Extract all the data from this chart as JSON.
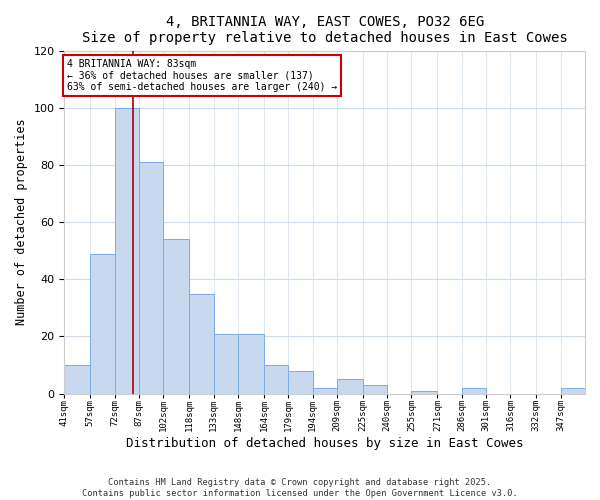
{
  "title": "4, BRITANNIA WAY, EAST COWES, PO32 6EG",
  "subtitle": "Size of property relative to detached houses in East Cowes",
  "xlabel": "Distribution of detached houses by size in East Cowes",
  "ylabel": "Number of detached properties",
  "bar_values": [
    10,
    49,
    100,
    81,
    54,
    35,
    21,
    21,
    10,
    8,
    2,
    5,
    3,
    0,
    1,
    0,
    2,
    0,
    0,
    0,
    2
  ],
  "bar_labels": [
    "41sqm",
    "57sqm",
    "72sqm",
    "87sqm",
    "102sqm",
    "118sqm",
    "133sqm",
    "148sqm",
    "164sqm",
    "179sqm",
    "194sqm",
    "209sqm",
    "225sqm",
    "240sqm",
    "255sqm",
    "271sqm",
    "286sqm",
    "301sqm",
    "316sqm",
    "332sqm",
    "347sqm"
  ],
  "bin_edges": [
    41,
    57,
    72,
    87,
    102,
    118,
    133,
    148,
    164,
    179,
    194,
    209,
    225,
    240,
    255,
    271,
    286,
    301,
    316,
    332,
    347,
    362
  ],
  "bar_color": "#c8d8ee",
  "bar_edgecolor": "#7aace6",
  "vline_x": 83,
  "vline_color": "#aa0000",
  "ylim": [
    0,
    120
  ],
  "yticks": [
    0,
    20,
    40,
    60,
    80,
    100,
    120
  ],
  "annotation_title": "4 BRITANNIA WAY: 83sqm",
  "annotation_line1": "← 36% of detached houses are smaller (137)",
  "annotation_line2": "63% of semi-detached houses are larger (240) →",
  "annotation_box_edgecolor": "#cc0000",
  "footer1": "Contains HM Land Registry data © Crown copyright and database right 2025.",
  "footer2": "Contains public sector information licensed under the Open Government Licence v3.0.",
  "bg_color": "#ffffff",
  "plot_bg_color": "#ffffff",
  "grid_color": "#d0dce8"
}
